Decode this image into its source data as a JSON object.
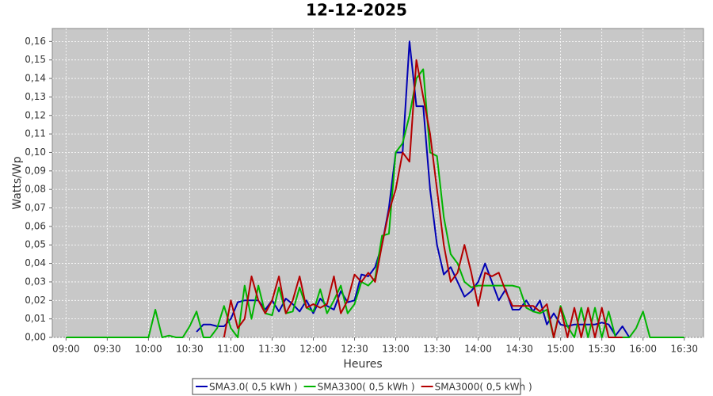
{
  "chart_data": {
    "type": "line",
    "title": "12-12-2025",
    "xlabel": "Heures",
    "ylabel": "Watts/Wp",
    "x": [
      "09:00",
      "09:05",
      "09:10",
      "09:15",
      "09:20",
      "09:25",
      "09:30",
      "09:35",
      "09:40",
      "09:45",
      "09:50",
      "09:55",
      "10:00",
      "10:05",
      "10:10",
      "10:15",
      "10:20",
      "10:25",
      "10:30",
      "10:35",
      "10:40",
      "10:45",
      "10:50",
      "10:55",
      "11:00",
      "11:05",
      "11:10",
      "11:15",
      "11:20",
      "11:25",
      "11:30",
      "11:35",
      "11:40",
      "11:45",
      "11:50",
      "11:55",
      "12:00",
      "12:05",
      "12:10",
      "12:15",
      "12:20",
      "12:25",
      "12:30",
      "12:35",
      "12:40",
      "12:45",
      "12:50",
      "12:55",
      "13:00",
      "13:05",
      "13:10",
      "13:15",
      "13:20",
      "13:25",
      "13:30",
      "13:35",
      "13:40",
      "13:45",
      "13:50",
      "13:55",
      "14:00",
      "14:05",
      "14:10",
      "14:15",
      "14:20",
      "14:25",
      "14:30",
      "14:35",
      "14:40",
      "14:45",
      "14:50",
      "14:55",
      "15:00",
      "15:05",
      "15:10",
      "15:15",
      "15:20",
      "15:25",
      "15:30",
      "15:35",
      "15:40",
      "15:45",
      "15:50",
      "15:55",
      "16:00",
      "16:05",
      "16:10",
      "16:15",
      "16:20",
      "16:25",
      "16:30"
    ],
    "series": [
      {
        "name": "SMA3.0( 0,5 kWh )",
        "color": "#0000b4",
        "values": [
          null,
          null,
          null,
          null,
          null,
          null,
          null,
          null,
          null,
          null,
          null,
          null,
          null,
          null,
          null,
          null,
          null,
          null,
          null,
          0.003,
          0.007,
          0.007,
          0.006,
          0.006,
          0.01,
          0.019,
          0.02,
          0.02,
          0.02,
          0.015,
          0.02,
          0.014,
          0.021,
          0.018,
          0.014,
          0.02,
          0.013,
          0.021,
          0.017,
          0.015,
          0.025,
          0.019,
          0.02,
          0.034,
          0.033,
          0.038,
          0.05,
          0.07,
          0.1,
          0.1,
          0.16,
          0.125,
          0.125,
          0.08,
          0.05,
          0.034,
          0.038,
          0.03,
          0.022,
          0.025,
          0.03,
          0.04,
          0.03,
          0.02,
          0.026,
          0.015,
          0.015,
          0.02,
          0.014,
          0.02,
          0.007,
          0.013,
          0.007,
          0.006,
          0.007,
          0.007,
          0.007,
          0.007,
          0.008,
          0.007,
          0.001,
          0.006,
          0,
          null,
          null,
          null,
          null,
          null,
          null,
          null,
          null
        ]
      },
      {
        "name": "SMA3300( 0,5 kWh )",
        "color": "#00b400",
        "values": [
          0,
          0,
          0,
          0,
          0,
          0,
          0,
          0,
          0,
          0,
          0,
          0,
          0,
          0.015,
          0,
          0.001,
          0,
          0,
          0.006,
          0.014,
          0,
          0,
          0.005,
          0.017,
          0.005,
          0,
          0.028,
          0.01,
          0.028,
          0.013,
          0.012,
          0.027,
          0.013,
          0.014,
          0.027,
          0.016,
          0.014,
          0.026,
          0.013,
          0.02,
          0.028,
          0.013,
          0.018,
          0.03,
          0.028,
          0.032,
          0.055,
          0.056,
          0.1,
          0.105,
          0.12,
          0.14,
          0.145,
          0.1,
          0.098,
          0.065,
          0.045,
          0.04,
          0.03,
          0.027,
          0.028,
          0.028,
          0.028,
          0.028,
          0.028,
          0.028,
          0.027,
          0.016,
          0.014,
          0.013,
          0.015,
          0,
          0.017,
          0.006,
          0,
          0.016,
          0,
          0.016,
          0,
          0.014,
          0,
          0,
          0,
          0.005,
          0.014,
          0,
          0,
          0,
          0,
          0,
          0
        ]
      },
      {
        "name": "SMA3000( 0,5 kWh )",
        "color": "#b40000",
        "values": [
          null,
          null,
          null,
          null,
          null,
          null,
          null,
          null,
          null,
          null,
          null,
          null,
          null,
          null,
          null,
          null,
          null,
          null,
          null,
          null,
          null,
          null,
          null,
          0,
          0.02,
          0.005,
          0.01,
          0.033,
          0.02,
          0.013,
          0.02,
          0.033,
          0.013,
          0.02,
          0.033,
          0.016,
          0.018,
          0.016,
          0.018,
          0.033,
          0.013,
          0.02,
          0.034,
          0.03,
          0.035,
          0.03,
          0.05,
          0.068,
          0.08,
          0.1,
          0.095,
          0.15,
          0.13,
          0.11,
          0.08,
          0.05,
          0.03,
          0.035,
          0.05,
          0.035,
          0.017,
          0.035,
          0.033,
          0.035,
          0.025,
          0.017,
          0.017,
          0.017,
          0.017,
          0.014,
          0.018,
          0,
          0.016,
          0,
          0.016,
          0,
          0.016,
          0,
          0.016,
          0,
          0,
          0,
          null,
          null,
          null,
          null,
          null,
          null,
          null,
          null,
          null
        ]
      }
    ],
    "xlim": [
      "08:50",
      "16:44"
    ],
    "xticks": [
      "09:00",
      "09:30",
      "10:00",
      "10:30",
      "11:00",
      "11:30",
      "12:00",
      "12:30",
      "13:00",
      "13:30",
      "14:00",
      "14:30",
      "15:00",
      "15:30",
      "16:00",
      "16:30"
    ],
    "ylim": [
      0,
      0.167
    ],
    "yticks": [
      {
        "value": 0,
        "label": "0,00"
      },
      {
        "value": 0.01,
        "label": "0,01"
      },
      {
        "value": 0.02,
        "label": "0,02"
      },
      {
        "value": 0.03,
        "label": "0,03"
      },
      {
        "value": 0.04,
        "label": "0,04"
      },
      {
        "value": 0.05,
        "label": "0,05"
      },
      {
        "value": 0.06,
        "label": "0,06"
      },
      {
        "value": 0.07,
        "label": "0,07"
      },
      {
        "value": 0.08,
        "label": "0,08"
      },
      {
        "value": 0.09,
        "label": "0,09"
      },
      {
        "value": 0.1,
        "label": "0,10"
      },
      {
        "value": 0.11,
        "label": "0,11"
      },
      {
        "value": 0.12,
        "label": "0,12"
      },
      {
        "value": 0.13,
        "label": "0,13"
      },
      {
        "value": 0.14,
        "label": "0,14"
      },
      {
        "value": 0.15,
        "label": "0,15"
      },
      {
        "value": 0.16,
        "label": "0,16"
      }
    ],
    "grid": true,
    "legend": "bottom"
  }
}
